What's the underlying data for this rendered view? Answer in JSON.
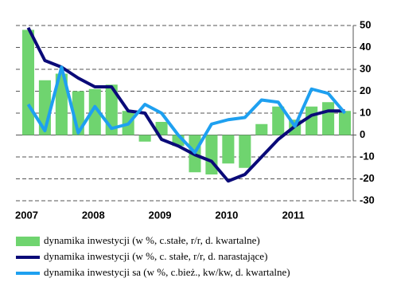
{
  "chart_data": {
    "type": "bar",
    "categories": [
      "2007",
      null,
      null,
      null,
      "2008",
      null,
      null,
      null,
      "2009",
      null,
      null,
      null,
      "2010",
      null,
      null,
      null,
      "2011",
      null,
      null,
      null
    ],
    "series": [
      {
        "name": "dynamika inwestycji (w %, c.stałe, r/r, d. kwartalne)",
        "type": "bar",
        "color": "#6fd46f",
        "values": [
          48,
          25,
          28,
          20,
          21,
          23,
          11,
          -3,
          6,
          -5,
          -17,
          -18,
          -13,
          -15,
          5,
          13,
          7,
          13,
          15,
          11
        ]
      },
      {
        "name": "dynamika inwestycji (w %, c. stałe, r/r, d. narastające)",
        "type": "line",
        "color": "#0a0a78",
        "values": [
          49,
          34,
          31,
          26,
          22,
          22,
          11,
          10,
          -2,
          -5,
          -9,
          -12,
          -21,
          -18,
          -10,
          -2,
          4,
          9,
          11,
          11
        ]
      },
      {
        "name": "dynamika inwestycji sa (w %, c.bież., kw/kw, d. kwartalne)",
        "type": "line",
        "color": "#1ea0f0",
        "values": [
          14,
          2,
          31,
          1,
          13,
          3,
          5,
          14,
          10,
          0,
          -8,
          5,
          7,
          8,
          16,
          15,
          4,
          21,
          19,
          10
        ]
      }
    ],
    "ylim": [
      -30,
      50
    ],
    "yticks": [
      -30,
      -20,
      -10,
      0,
      10,
      20,
      30,
      40,
      50
    ],
    "grid": true
  }
}
